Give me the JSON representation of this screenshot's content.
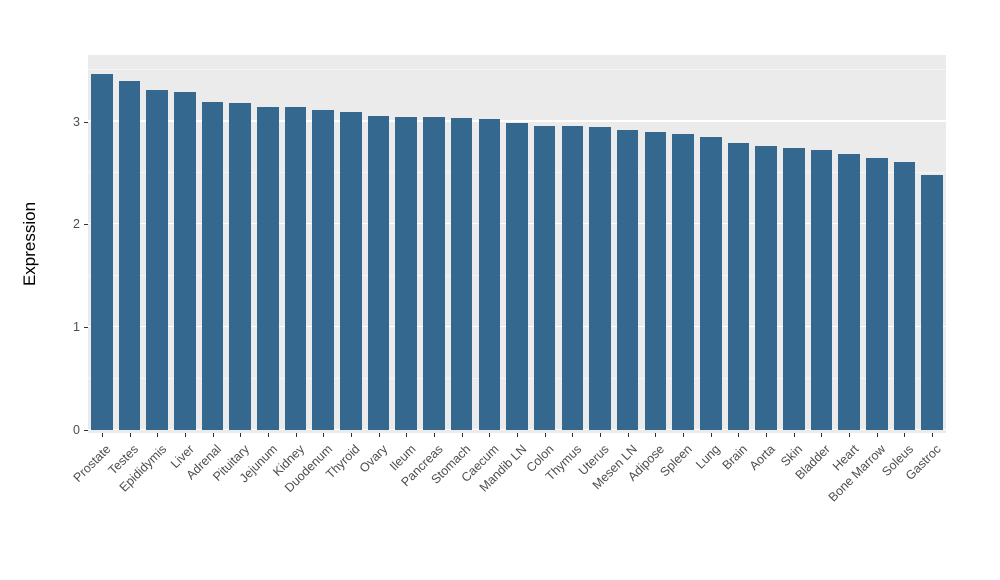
{
  "chart_data": {
    "type": "bar",
    "title": "",
    "xlabel": "",
    "ylabel": "Expression",
    "categories": [
      "Prostate",
      "Testes",
      "Epididymis",
      "Liver",
      "Adrenal",
      "Pituitary",
      "Jejunum",
      "Kidney",
      "Duodenum",
      "Thyroid",
      "Ovary",
      "Ileum",
      "Pancreas",
      "Stomach",
      "Caecum",
      "Mandib LN",
      "Colon",
      "Thymus",
      "Uterus",
      "Mesen LN",
      "Adipose",
      "Spleen",
      "Lung",
      "Brain",
      "Aorta",
      "Skin",
      "Bladder",
      "Heart",
      "Bone Marrow",
      "Soleus",
      "Gastroc"
    ],
    "values": [
      3.47,
      3.4,
      3.31,
      3.29,
      3.19,
      3.18,
      3.14,
      3.14,
      3.11,
      3.1,
      3.06,
      3.05,
      3.05,
      3.04,
      3.03,
      2.99,
      2.96,
      2.96,
      2.95,
      2.92,
      2.9,
      2.88,
      2.85,
      2.79,
      2.76,
      2.74,
      2.73,
      2.69,
      2.65,
      2.61,
      2.48
    ],
    "ylim": [
      -0.03,
      3.65
    ],
    "yticks_major": [
      0,
      1,
      2,
      3
    ],
    "yticks_minor": [
      0.5,
      1.5,
      2.5,
      3.5
    ],
    "grid": true,
    "legend": "none",
    "colors": {
      "bar_fill": "#35688F",
      "panel_bg": "#EBEBEB",
      "grid_major": "#FFFFFF",
      "tick_text": "#4D4D4D",
      "axis_title_text": "#000000"
    }
  }
}
